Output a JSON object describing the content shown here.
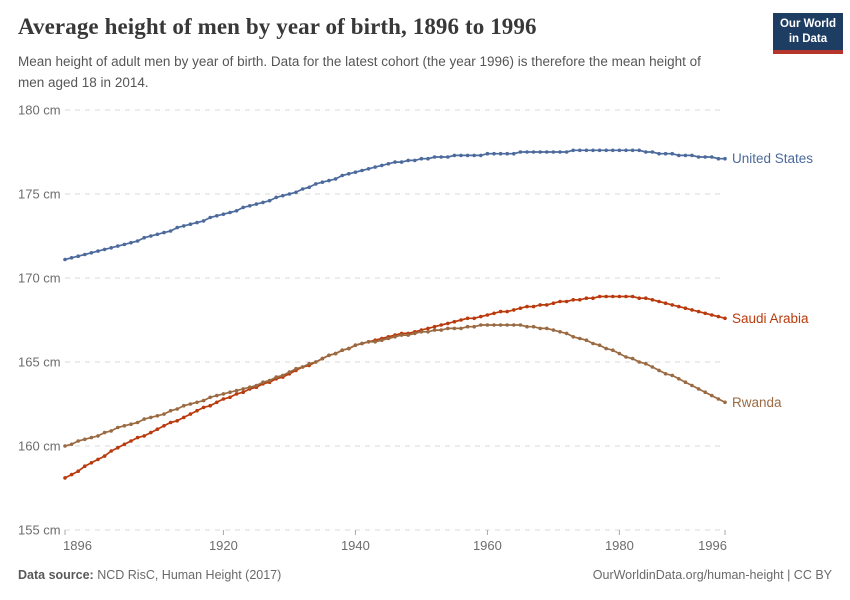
{
  "header": {
    "title": "Average height of men by year of birth, 1896 to 1996",
    "subtitle": "Mean height of adult men by year of birth. Data for the latest cohort (the year 1996) is therefore the mean height of men aged 18 in 2014.",
    "logo_line1": "Our World",
    "logo_line2": "in Data",
    "logo_bg": "#1d3d63",
    "logo_stripe": "#b5342c"
  },
  "footer": {
    "source_label": "Data source:",
    "source_text": " NCD RisC, Human Height (2017)",
    "credit": "OurWorldinData.org/human-height | CC BY"
  },
  "chart_data": {
    "type": "line",
    "title": "Average height of men by year of birth, 1896 to 1996",
    "xlabel": "",
    "ylabel": "",
    "x_start": 1896,
    "x_end": 1996,
    "x_step": 1,
    "x_ticks": [
      1896,
      1920,
      1940,
      1960,
      1980,
      1996
    ],
    "y_ticks": [
      155,
      160,
      165,
      170,
      175,
      180
    ],
    "y_tick_suffix": " cm",
    "ylim": [
      155,
      180
    ],
    "grid": "dashed-horizontal",
    "legend_position": "right-of-line-end",
    "marker": "dot-every-year",
    "colors": {
      "grid": "#d9d9d9",
      "axis_text": "#6d6d6d",
      "tick": "#a8a8a8"
    },
    "series": [
      {
        "name": "United States",
        "color": "#4C6A9C",
        "values": [
          171.1,
          171.2,
          171.3,
          171.4,
          171.5,
          171.6,
          171.7,
          171.8,
          171.9,
          172.0,
          172.1,
          172.2,
          172.4,
          172.5,
          172.6,
          172.7,
          172.8,
          173.0,
          173.1,
          173.2,
          173.3,
          173.4,
          173.6,
          173.7,
          173.8,
          173.9,
          174.0,
          174.2,
          174.3,
          174.4,
          174.5,
          174.6,
          174.8,
          174.9,
          175.0,
          175.1,
          175.3,
          175.4,
          175.6,
          175.7,
          175.8,
          175.9,
          176.1,
          176.2,
          176.3,
          176.4,
          176.5,
          176.6,
          176.7,
          176.8,
          176.9,
          176.9,
          177.0,
          177.0,
          177.1,
          177.1,
          177.2,
          177.2,
          177.2,
          177.3,
          177.3,
          177.3,
          177.3,
          177.3,
          177.4,
          177.4,
          177.4,
          177.4,
          177.4,
          177.5,
          177.5,
          177.5,
          177.5,
          177.5,
          177.5,
          177.5,
          177.5,
          177.6,
          177.6,
          177.6,
          177.6,
          177.6,
          177.6,
          177.6,
          177.6,
          177.6,
          177.6,
          177.6,
          177.5,
          177.5,
          177.4,
          177.4,
          177.4,
          177.3,
          177.3,
          177.3,
          177.2,
          177.2,
          177.2,
          177.1,
          177.1
        ]
      },
      {
        "name": "Saudi Arabia",
        "color": "#B93A0C",
        "values": [
          158.1,
          158.3,
          158.5,
          158.8,
          159.0,
          159.2,
          159.4,
          159.7,
          159.9,
          160.1,
          160.3,
          160.5,
          160.6,
          160.8,
          161.0,
          161.2,
          161.4,
          161.5,
          161.7,
          161.9,
          162.1,
          162.3,
          162.4,
          162.6,
          162.8,
          162.9,
          163.1,
          163.2,
          163.4,
          163.5,
          163.7,
          163.8,
          164.0,
          164.1,
          164.3,
          164.5,
          164.7,
          164.8,
          165.0,
          165.2,
          165.4,
          165.5,
          165.7,
          165.8,
          166.0,
          166.1,
          166.2,
          166.3,
          166.4,
          166.5,
          166.6,
          166.7,
          166.7,
          166.8,
          166.9,
          167.0,
          167.1,
          167.2,
          167.3,
          167.4,
          167.5,
          167.6,
          167.6,
          167.7,
          167.8,
          167.9,
          168.0,
          168.0,
          168.1,
          168.2,
          168.3,
          168.3,
          168.4,
          168.4,
          168.5,
          168.6,
          168.6,
          168.7,
          168.7,
          168.8,
          168.8,
          168.9,
          168.9,
          168.9,
          168.9,
          168.9,
          168.9,
          168.8,
          168.8,
          168.7,
          168.6,
          168.5,
          168.4,
          168.3,
          168.2,
          168.1,
          168.0,
          167.9,
          167.8,
          167.7,
          167.6
        ]
      },
      {
        "name": "Rwanda",
        "color": "#9A6A42",
        "values": [
          160.0,
          160.1,
          160.3,
          160.4,
          160.5,
          160.6,
          160.8,
          160.9,
          161.1,
          161.2,
          161.3,
          161.4,
          161.6,
          161.7,
          161.8,
          161.9,
          162.1,
          162.2,
          162.4,
          162.5,
          162.6,
          162.7,
          162.9,
          163.0,
          163.1,
          163.2,
          163.3,
          163.4,
          163.5,
          163.6,
          163.8,
          163.9,
          164.1,
          164.2,
          164.4,
          164.6,
          164.7,
          164.9,
          165.0,
          165.2,
          165.4,
          165.5,
          165.7,
          165.8,
          166.0,
          166.1,
          166.2,
          166.2,
          166.3,
          166.4,
          166.5,
          166.6,
          166.6,
          166.7,
          166.8,
          166.8,
          166.9,
          166.9,
          167.0,
          167.0,
          167.0,
          167.1,
          167.1,
          167.2,
          167.2,
          167.2,
          167.2,
          167.2,
          167.2,
          167.2,
          167.1,
          167.1,
          167.0,
          167.0,
          166.9,
          166.8,
          166.7,
          166.5,
          166.4,
          166.3,
          166.1,
          166.0,
          165.8,
          165.7,
          165.5,
          165.3,
          165.2,
          165.0,
          164.9,
          164.7,
          164.5,
          164.3,
          164.2,
          164.0,
          163.8,
          163.6,
          163.4,
          163.2,
          163.0,
          162.8,
          162.6
        ]
      }
    ]
  }
}
